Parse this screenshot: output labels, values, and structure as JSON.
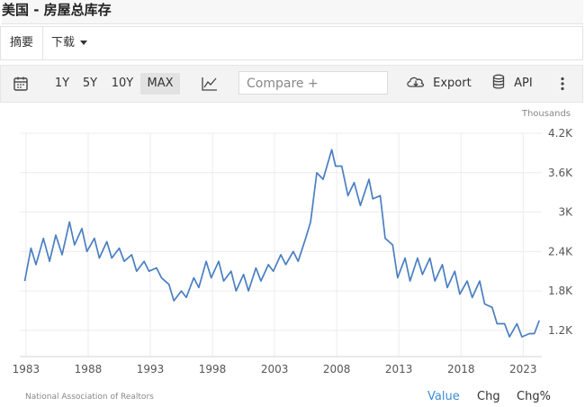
{
  "page": {
    "title": "美国 - 房屋总库存"
  },
  "subbar": {
    "summary": "摘要",
    "download": "下载"
  },
  "toolbar": {
    "ranges": [
      "1Y",
      "5Y",
      "10Y",
      "MAX"
    ],
    "selected_range": "MAX",
    "compare_placeholder": "Compare +",
    "export_label": "Export",
    "api_label": "API"
  },
  "footer": {
    "source": "National Association of Realtors",
    "tabs": [
      "Value",
      "Chg",
      "Chg%"
    ]
  },
  "chart_data": {
    "type": "line",
    "unit_label": "Thousands",
    "line_color": "#4a7fc1",
    "ylim": [
      800,
      4200
    ],
    "yticks": [
      1200,
      1800,
      2400,
      3000,
      3600,
      4200
    ],
    "ytick_labels": [
      "1.2K",
      "1.8K",
      "2.4K",
      "3K",
      "3.6K",
      "4.2K"
    ],
    "xlim": [
      1982.5,
      2024.5
    ],
    "xticks": [
      1983,
      1988,
      1993,
      1998,
      2003,
      2008,
      2013,
      2018,
      2023
    ],
    "grid": true,
    "series": [
      {
        "values": [
          [
            1982.9,
            1950
          ],
          [
            1983.4,
            2450
          ],
          [
            1983.8,
            2200
          ],
          [
            1984.4,
            2600
          ],
          [
            1984.9,
            2250
          ],
          [
            1985.4,
            2650
          ],
          [
            1985.9,
            2350
          ],
          [
            1986.5,
            2850
          ],
          [
            1986.9,
            2500
          ],
          [
            1987.5,
            2750
          ],
          [
            1987.9,
            2400
          ],
          [
            1988.5,
            2600
          ],
          [
            1988.9,
            2300
          ],
          [
            1989.5,
            2550
          ],
          [
            1989.9,
            2300
          ],
          [
            1990.5,
            2450
          ],
          [
            1990.9,
            2250
          ],
          [
            1991.5,
            2350
          ],
          [
            1991.9,
            2100
          ],
          [
            1992.5,
            2250
          ],
          [
            1992.9,
            2100
          ],
          [
            1993.5,
            2150
          ],
          [
            1993.9,
            2000
          ],
          [
            1994.5,
            1900
          ],
          [
            1994.9,
            1650
          ],
          [
            1995.5,
            1800
          ],
          [
            1995.9,
            1700
          ],
          [
            1996.5,
            2000
          ],
          [
            1996.9,
            1850
          ],
          [
            1997.5,
            2250
          ],
          [
            1997.9,
            2000
          ],
          [
            1998.5,
            2250
          ],
          [
            1998.9,
            1950
          ],
          [
            1999.5,
            2100
          ],
          [
            1999.9,
            1800
          ],
          [
            2000.5,
            2050
          ],
          [
            2000.9,
            1800
          ],
          [
            2001.5,
            2150
          ],
          [
            2001.9,
            1950
          ],
          [
            2002.5,
            2200
          ],
          [
            2002.9,
            2100
          ],
          [
            2003.5,
            2350
          ],
          [
            2003.9,
            2200
          ],
          [
            2004.5,
            2400
          ],
          [
            2004.9,
            2250
          ],
          [
            2005.5,
            2600
          ],
          [
            2005.9,
            2850
          ],
          [
            2006.4,
            3600
          ],
          [
            2006.9,
            3500
          ],
          [
            2007.6,
            3950
          ],
          [
            2007.9,
            3700
          ],
          [
            2008.4,
            3700
          ],
          [
            2008.9,
            3250
          ],
          [
            2009.4,
            3450
          ],
          [
            2009.9,
            3100
          ],
          [
            2010.6,
            3500
          ],
          [
            2010.9,
            3200
          ],
          [
            2011.5,
            3250
          ],
          [
            2011.9,
            2600
          ],
          [
            2012.5,
            2500
          ],
          [
            2012.9,
            2000
          ],
          [
            2013.5,
            2300
          ],
          [
            2013.9,
            1950
          ],
          [
            2014.5,
            2300
          ],
          [
            2014.9,
            2050
          ],
          [
            2015.5,
            2300
          ],
          [
            2015.9,
            1950
          ],
          [
            2016.5,
            2200
          ],
          [
            2016.9,
            1850
          ],
          [
            2017.5,
            2100
          ],
          [
            2017.9,
            1750
          ],
          [
            2018.5,
            1950
          ],
          [
            2018.9,
            1700
          ],
          [
            2019.5,
            1950
          ],
          [
            2019.9,
            1600
          ],
          [
            2020.5,
            1550
          ],
          [
            2020.9,
            1300
          ],
          [
            2021.5,
            1300
          ],
          [
            2021.9,
            1100
          ],
          [
            2022.5,
            1300
          ],
          [
            2022.9,
            1100
          ],
          [
            2023.5,
            1150
          ],
          [
            2023.9,
            1150
          ],
          [
            2024.3,
            1350
          ]
        ]
      }
    ]
  }
}
